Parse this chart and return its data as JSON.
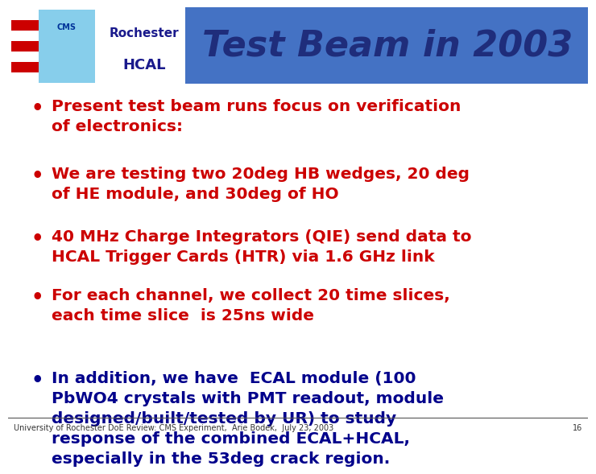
{
  "title": "Test Beam in 2003",
  "header_label1": "Rochester",
  "header_label2": "HCAL",
  "header_bg_color": "#4472C4",
  "title_color": "#1F2D7B",
  "bg_color": "#FFFFFF",
  "footer_text": "University of Rochester DoE Review: CMS Experiment,  Arie Bodek,  July 23, 2003",
  "footer_page": "16",
  "bullets_red": [
    "Present test beam runs focus on verification\nof electronics:",
    "We are testing two 20deg HB wedges, 20 deg\nof HE module, and 30deg of HO",
    "40 MHz Charge Integrators (QIE) send data to\nHCAL Trigger Cards (HTR) via 1.6 GHz link",
    "For each channel, we collect 20 time slices,\neach time slice  is 25ns wide"
  ],
  "bullets_blue": [
    "In addition, we have  ECAL module (100\nPbWO4 crystals with PMT readout, module\ndesigned/built/tested by UR) to study\nresponse of the combined ECAL+HCAL,\nespecially in the 53deg crack region."
  ],
  "red_color": "#CC0000",
  "blue_color": "#00008B",
  "bullet_fontsize": 14.5,
  "title_fontsize": 32,
  "header_text_color": "#1A1A8C"
}
